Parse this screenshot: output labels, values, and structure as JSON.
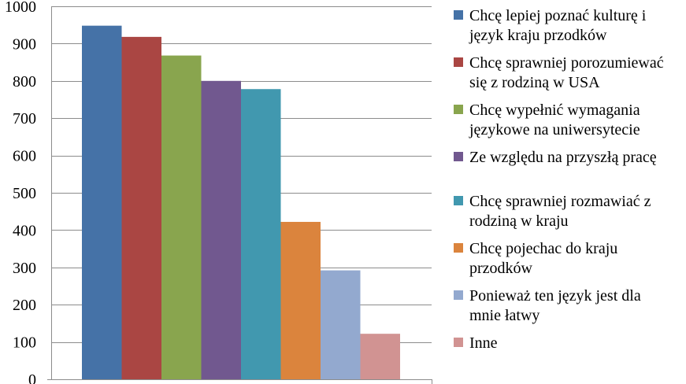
{
  "chart_data": {
    "type": "bar",
    "title": "",
    "xlabel": "",
    "ylabel": "",
    "ylim": [
      0,
      1000
    ],
    "yticks": [
      "0",
      "100",
      "200",
      "300",
      "400",
      "500",
      "600",
      "700",
      "800",
      "900",
      "1000"
    ],
    "grid": true,
    "legend_position": "right",
    "series": [
      {
        "name": [
          "Chcę lepiej poznać kulturę i",
          "język kraju przodków"
        ],
        "value": 948,
        "color": "#4572A7"
      },
      {
        "name": [
          "Chcę sprawniej porozumiewać",
          "się z rodziną w USA"
        ],
        "value": 918,
        "color": "#AA4643"
      },
      {
        "name": [
          "Chcę wypełnić wymagania",
          "językowe na uniwersytecie"
        ],
        "value": 868,
        "color": "#89A54E"
      },
      {
        "name": [
          "Ze względu na przyszłą pracę"
        ],
        "value": 800,
        "color": "#71588F"
      },
      {
        "name": [
          "Chcę sprawniej rozmawiać z",
          "rodziną w kraju"
        ],
        "value": 778,
        "color": "#4198AF"
      },
      {
        "name": [
          "Chcę pojechac do kraju",
          "przodków"
        ],
        "value": 422,
        "color": "#DB843D"
      },
      {
        "name": [
          "Ponieważ ten język jest dla",
          "mnie łatwy"
        ],
        "value": 292,
        "color": "#93A9CF"
      },
      {
        "name": [
          "Inne"
        ],
        "value": 122,
        "color": "#D19392"
      }
    ]
  }
}
